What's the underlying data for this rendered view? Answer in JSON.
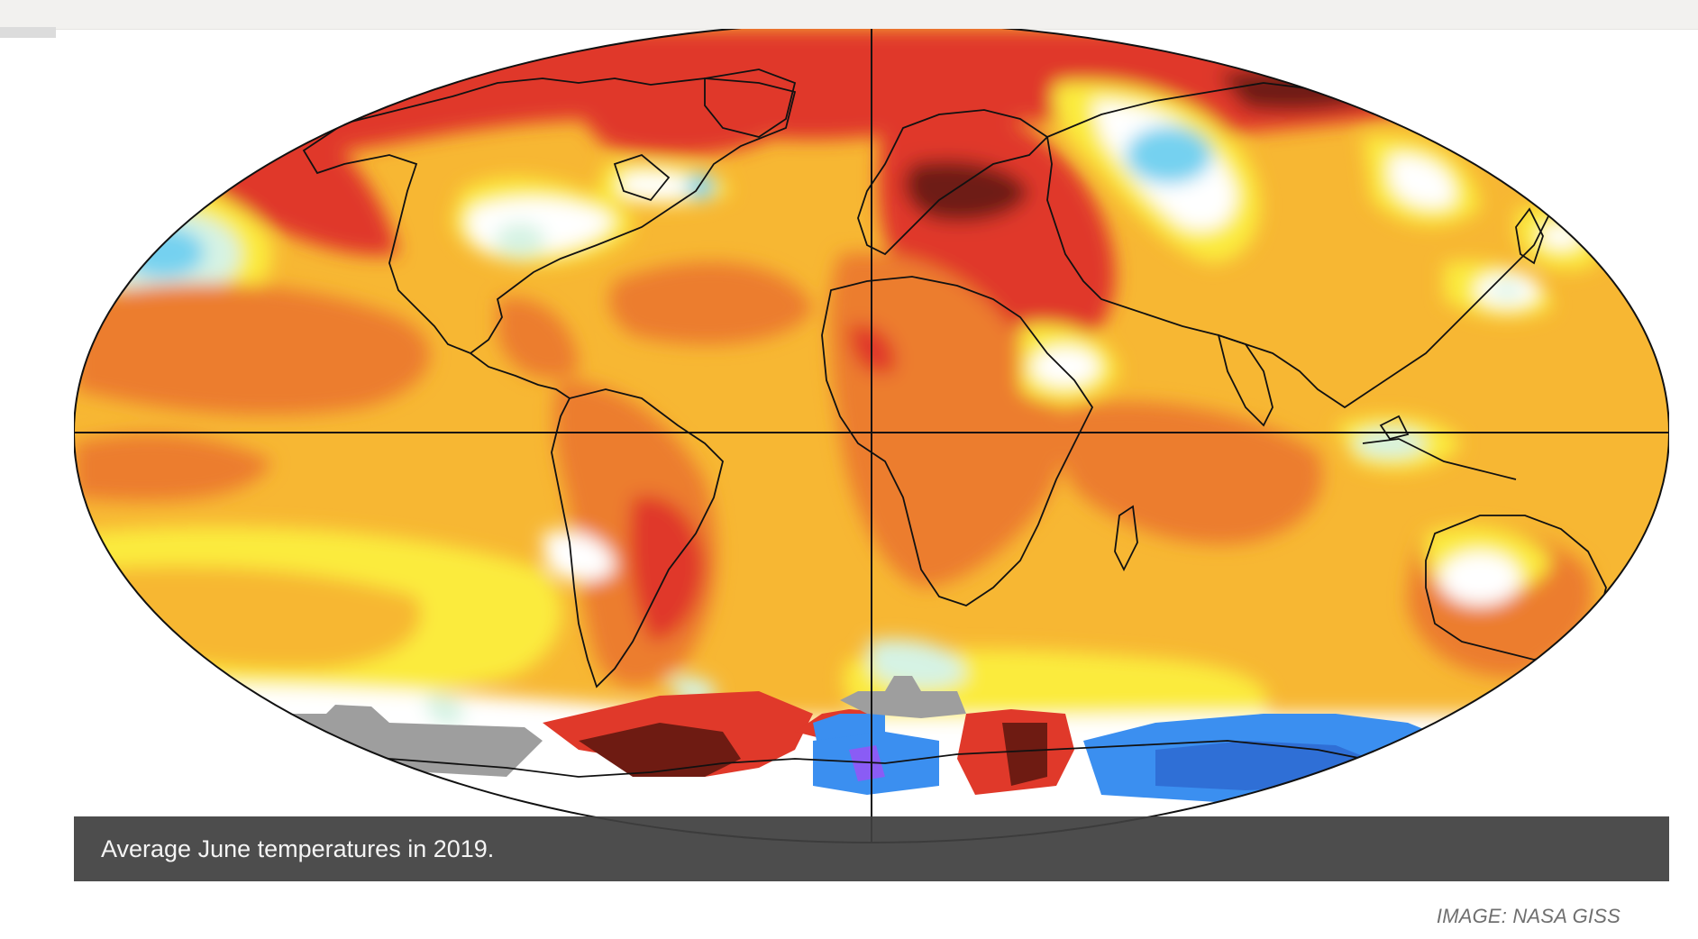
{
  "caption": "Average June temperatures in 2019.",
  "credit": "IMAGE: NASA GISS",
  "map": {
    "projection": "robinson-like ellipse",
    "palette": {
      "ocean_base": "#f7b733",
      "deep_warm": "#6e1b12",
      "strong_warm": "#e0392a",
      "warm": "#ec7d2f",
      "mild": "#f7b733",
      "slight": "#fbeb3e",
      "neutral": "#ffffff",
      "slight_cool": "#d6f3e4",
      "cool": "#74d1f0",
      "strong_cool": "#3b8ff0",
      "deep_cool": "#8a5cf5",
      "no_data": "#9e9e9e"
    }
  }
}
